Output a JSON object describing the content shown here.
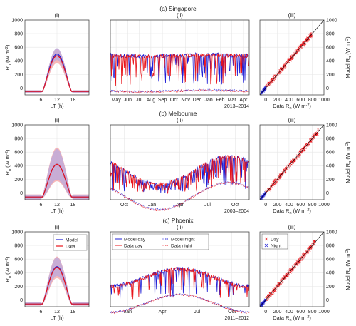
{
  "rows": [
    {
      "title": "(a) Singapore",
      "diurnal": {
        "label": "(i)",
        "ylabel": "R",
        "ylabel_sub": "n",
        "ylabel_unit": " (W m",
        "ylabel_unit_sup": "-2",
        "ylabel_close": ")",
        "xlabel": "LT (h)",
        "xticks": [
          "6",
          "12",
          "18"
        ],
        "yticks": [
          "0",
          "200",
          "400",
          "600",
          "800",
          "1000"
        ],
        "peak_model": 500,
        "peak_data": 475,
        "band_data": 100,
        "band_model": 80,
        "night": -50
      },
      "series": {
        "label": "(ii)",
        "xticks": [
          "May",
          "Jun",
          "Jul",
          "Aug",
          "Sep",
          "Oct",
          "Nov",
          "Dec",
          "Jan",
          "Feb",
          "Mar",
          "Apr"
        ],
        "period": "2013–2014",
        "day_level": 480,
        "day_variability": 0.22,
        "night_level": -40,
        "seasonal_amp": 20
      },
      "scatter": {
        "label": "(iii)",
        "ylabel": "Model R",
        "ylabel_sub": "n",
        "ylabel_unit": " (W m",
        "ylabel_unit_sup": "-2",
        "ylabel_close": ")",
        "xlabel": "Data R",
        "xlabel_sub": "n",
        "xlabel_unit": " (W m",
        "xlabel_unit_sup": "-2",
        "xlabel_close": ")",
        "xticks": [
          "0",
          "200",
          "400",
          "600",
          "800",
          "1000"
        ],
        "yticks": [
          "0",
          "200",
          "400",
          "600",
          "800",
          "1000"
        ],
        "day_range": [
          0,
          800
        ],
        "night_range": [
          -80,
          0
        ]
      }
    },
    {
      "title": "(b) Melbourne",
      "diurnal": {
        "label": "(i)",
        "ylabel": "R",
        "ylabel_sub": "n",
        "ylabel_unit": " (W m",
        "ylabel_unit_sup": "-2",
        "ylabel_close": ")",
        "xlabel": "LT (h)",
        "xticks": [
          "6",
          "12",
          "18"
        ],
        "yticks": [
          "0",
          "200",
          "400",
          "600",
          "800",
          "1000"
        ],
        "peak_model": 420,
        "peak_data": 420,
        "band_data": 240,
        "band_model": 220,
        "night": -60
      },
      "series": {
        "label": "(ii)",
        "xticks": [
          "Oct",
          "Jan",
          "Apr",
          "Jul",
          "Oct"
        ],
        "period": "2003–2004",
        "day_level": 330,
        "day_variability": 0.35,
        "night_level": -45,
        "seasonal_amp": 200
      },
      "scatter": {
        "label": "(iii)",
        "ylabel": "Model R",
        "ylabel_sub": "n",
        "ylabel_unit": " (W m",
        "ylabel_unit_sup": "-2",
        "ylabel_close": ")",
        "xlabel": "Data R",
        "xlabel_sub": "n",
        "xlabel_unit": " (W m",
        "xlabel_unit_sup": "-2",
        "xlabel_close": ")",
        "xticks": [
          "0",
          "200",
          "400",
          "600",
          "800",
          "1000"
        ],
        "yticks": [
          "0",
          "200",
          "400",
          "600",
          "800",
          "1000"
        ],
        "day_range": [
          0,
          900
        ],
        "night_range": [
          -90,
          0
        ]
      }
    },
    {
      "title": "(c) Phoenix",
      "diurnal": {
        "label": "(i)",
        "ylabel": "R",
        "ylabel_sub": "n",
        "ylabel_unit": " (W m",
        "ylabel_unit_sup": "-2",
        "ylabel_close": ")",
        "xlabel": "LT (h)",
        "xticks": [
          "6",
          "12",
          "18"
        ],
        "yticks": [
          "0",
          "200",
          "400",
          "600",
          "800",
          "1000"
        ],
        "peak_model": 490,
        "peak_data": 480,
        "band_data": 150,
        "band_model": 130,
        "night": -60,
        "legend": [
          "Model",
          "Data"
        ]
      },
      "series": {
        "label": "(ii)",
        "xticks": [
          "Jan",
          "Apr",
          "Jul",
          "Oct"
        ],
        "period": "2011–2012",
        "day_level": 330,
        "day_variability": 0.12,
        "night_level": -50,
        "seasonal_amp": 130,
        "legend": [
          "Model day",
          "Data day",
          "Model night",
          "Data night"
        ]
      },
      "scatter": {
        "label": "(iii)",
        "ylabel": "Model R",
        "ylabel_sub": "n",
        "ylabel_unit": " (W m",
        "ylabel_unit_sup": "-2",
        "ylabel_close": ")",
        "xlabel": "Data R",
        "xlabel_sub": "n",
        "xlabel_unit": " (W m",
        "xlabel_unit_sup": "-2",
        "xlabel_close": ")",
        "xticks": [
          "0",
          "200",
          "400",
          "600",
          "800",
          "1000"
        ],
        "yticks": [
          "0",
          "200",
          "400",
          "600",
          "800",
          "1000"
        ],
        "day_range": [
          0,
          850
        ],
        "night_range": [
          -90,
          0
        ],
        "legend": [
          "Day",
          "Night"
        ]
      }
    }
  ],
  "colors": {
    "model": "#1f1fd6",
    "data": "#e8141a",
    "band_data": "#f5a0a0",
    "band_model": "#a9a5e8",
    "one_to_one": "#000000"
  },
  "chart_data": [
    {
      "type": "line",
      "panel": "Singapore diurnal (i)",
      "xlabel": "LT (h)",
      "ylabel": "Rn (W m-2)",
      "xlim": [
        0,
        24
      ],
      "ylim": [
        -100,
        1000
      ],
      "series": [
        {
          "name": "Model",
          "x": [
            0,
            6,
            8,
            10,
            12,
            14,
            16,
            18,
            24
          ],
          "values": [
            -50,
            -40,
            150,
            400,
            500,
            400,
            150,
            -40,
            -50
          ]
        },
        {
          "name": "Data",
          "x": [
            0,
            6,
            8,
            10,
            12,
            14,
            16,
            18,
            24
          ],
          "values": [
            -50,
            -40,
            140,
            380,
            475,
            380,
            140,
            -40,
            -50
          ]
        }
      ]
    },
    {
      "type": "line",
      "panel": "Singapore time series (ii)",
      "ylim": [
        -100,
        1000
      ],
      "period": "2013–2014",
      "series": [
        {
          "name": "Model day",
          "mean_value": 480
        },
        {
          "name": "Data day",
          "mean_value": 470
        },
        {
          "name": "Model night",
          "mean_value": -40
        },
        {
          "name": "Data night",
          "mean_value": -45
        }
      ]
    },
    {
      "type": "scatter",
      "panel": "Singapore scatter (iii)",
      "xlabel": "Data Rn (W m-2)",
      "ylabel": "Model Rn (W m-2)",
      "xlim": [
        -100,
        1000
      ],
      "ylim": [
        -100,
        1000
      ],
      "series": [
        {
          "name": "Day",
          "range": [
            0,
            800
          ]
        },
        {
          "name": "Night",
          "range": [
            -80,
            0
          ]
        }
      ]
    },
    {
      "type": "line",
      "panel": "Melbourne diurnal (i)",
      "xlabel": "LT (h)",
      "ylabel": "Rn (W m-2)",
      "xlim": [
        0,
        24
      ],
      "ylim": [
        -100,
        1000
      ],
      "series": [
        {
          "name": "Model",
          "x": [
            0,
            6,
            8,
            10,
            12,
            14,
            16,
            18,
            24
          ],
          "values": [
            -60,
            -50,
            130,
            330,
            420,
            330,
            130,
            -50,
            -60
          ]
        },
        {
          "name": "Data",
          "x": [
            0,
            6,
            8,
            10,
            12,
            14,
            16,
            18,
            24
          ],
          "values": [
            -60,
            -50,
            130,
            330,
            420,
            330,
            130,
            -50,
            -60
          ]
        }
      ]
    },
    {
      "type": "line",
      "panel": "Melbourne time series (ii)",
      "ylim": [
        -100,
        1000
      ],
      "period": "2003–2004",
      "series": [
        {
          "name": "Model day",
          "mean_value": 330
        },
        {
          "name": "Data day",
          "mean_value": 325
        },
        {
          "name": "Model night",
          "mean_value": -45
        },
        {
          "name": "Data night",
          "mean_value": -50
        }
      ]
    },
    {
      "type": "scatter",
      "panel": "Melbourne scatter (iii)",
      "xlabel": "Data Rn (W m-2)",
      "ylabel": "Model Rn (W m-2)",
      "xlim": [
        -100,
        1000
      ],
      "ylim": [
        -100,
        1000
      ],
      "series": [
        {
          "name": "Day",
          "range": [
            0,
            900
          ]
        },
        {
          "name": "Night",
          "range": [
            -90,
            0
          ]
        }
      ]
    },
    {
      "type": "line",
      "panel": "Phoenix diurnal (i)",
      "xlabel": "LT (h)",
      "ylabel": "Rn (W m-2)",
      "xlim": [
        0,
        24
      ],
      "ylim": [
        -100,
        1000
      ],
      "series": [
        {
          "name": "Model",
          "x": [
            0,
            6,
            8,
            10,
            12,
            14,
            16,
            18,
            24
          ],
          "values": [
            -60,
            -50,
            150,
            390,
            490,
            390,
            150,
            -50,
            -60
          ]
        },
        {
          "name": "Data",
          "x": [
            0,
            6,
            8,
            10,
            12,
            14,
            16,
            18,
            24
          ],
          "values": [
            -60,
            -50,
            145,
            380,
            480,
            380,
            145,
            -50,
            -60
          ]
        }
      ]
    },
    {
      "type": "line",
      "panel": "Phoenix time series (ii)",
      "ylim": [
        -100,
        1000
      ],
      "period": "2011–2012",
      "series": [
        {
          "name": "Model day",
          "mean_value": 330
        },
        {
          "name": "Data day",
          "mean_value": 325
        },
        {
          "name": "Model night",
          "mean_value": -50
        },
        {
          "name": "Data night",
          "mean_value": -55
        }
      ]
    },
    {
      "type": "scatter",
      "panel": "Phoenix scatter (iii)",
      "xlabel": "Data Rn (W m-2)",
      "ylabel": "Model Rn (W m-2)",
      "xlim": [
        -100,
        1000
      ],
      "ylim": [
        -100,
        1000
      ],
      "series": [
        {
          "name": "Day",
          "range": [
            0,
            850
          ]
        },
        {
          "name": "Night",
          "range": [
            -90,
            0
          ]
        }
      ]
    }
  ]
}
